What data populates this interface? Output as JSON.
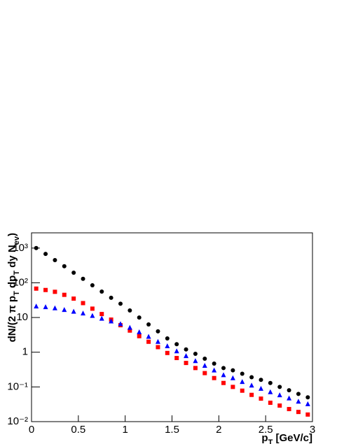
{
  "chart_data": {
    "type": "scatter",
    "x_label": [
      {
        "text": "p"
      },
      {
        "text": "T",
        "sub": true
      },
      {
        "text": " [GeV/c]"
      }
    ],
    "y_label": [
      {
        "text": "dN/(2 π p"
      },
      {
        "text": "T",
        "sub": true
      },
      {
        "text": " dp"
      },
      {
        "text": "T",
        "sub": true
      },
      {
        "text": " dy N"
      },
      {
        "text": "ev",
        "sub": true
      },
      {
        "text": ")"
      }
    ],
    "x": [
      0.05,
      0.15,
      0.25,
      0.35,
      0.45,
      0.55,
      0.65,
      0.75,
      0.85,
      0.95,
      1.05,
      1.15,
      1.25,
      1.35,
      1.45,
      1.55,
      1.65,
      1.75,
      1.85,
      1.95,
      2.05,
      2.15,
      2.25,
      2.35,
      2.45,
      2.55,
      2.65,
      2.75,
      2.85,
      2.95
    ],
    "series": [
      {
        "color": "#000000",
        "marker": "circle",
        "values": [
          1000,
          680,
          450,
          300,
          195,
          130,
          85,
          56,
          37,
          25,
          16,
          10,
          6.3,
          4.0,
          2.5,
          1.7,
          1.2,
          0.9,
          0.65,
          0.47,
          0.35,
          0.3,
          0.24,
          0.19,
          0.16,
          0.13,
          0.1,
          0.08,
          0.063,
          0.05
        ]
      },
      {
        "color": "#ff0000",
        "marker": "square",
        "values": [
          68,
          62,
          55,
          45,
          35,
          26,
          18,
          12.6,
          8.7,
          6.0,
          4.2,
          2.9,
          2.0,
          1.4,
          0.95,
          0.68,
          0.49,
          0.35,
          0.25,
          0.18,
          0.13,
          0.1,
          0.078,
          0.059,
          0.046,
          0.035,
          0.029,
          0.023,
          0.019,
          0.016
        ]
      },
      {
        "color": "#0000ff",
        "marker": "triangle",
        "values": [
          21,
          20,
          18.6,
          16.6,
          14.8,
          13.2,
          11.2,
          9.3,
          7.8,
          6.5,
          5.1,
          3.8,
          2.8,
          2.0,
          1.5,
          1.07,
          0.78,
          0.56,
          0.41,
          0.3,
          0.22,
          0.18,
          0.14,
          0.11,
          0.089,
          0.071,
          0.058,
          0.047,
          0.038,
          0.032
        ]
      }
    ],
    "xlim": [
      0,
      3
    ],
    "xticks": [
      0,
      0.5,
      1,
      1.5,
      2,
      2.5,
      3
    ],
    "ylim": [
      0.01,
      2750
    ],
    "log_y": true,
    "yticks": [
      {
        "value": 0.01,
        "label": "10⁻²"
      },
      {
        "value": 0.1,
        "label": "10⁻¹"
      },
      1,
      10,
      {
        "value": 100,
        "label": "10²"
      },
      {
        "value": 1000,
        "label": "10³"
      }
    ],
    "grid": false
  }
}
